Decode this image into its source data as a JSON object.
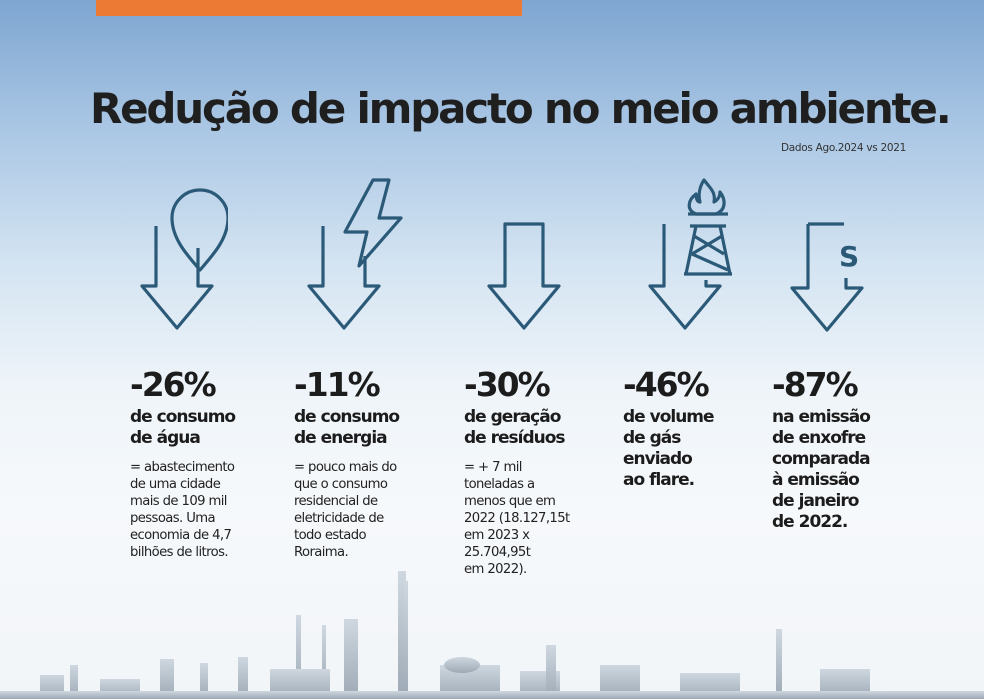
{
  "title": "Redução de impacto no meio ambiente.",
  "subtitle": "Dados Ago.2024 vs 2021",
  "colors": {
    "accent": "#ec7a35",
    "icon_stroke": "#2b5a78",
    "text": "#1c1c1c"
  },
  "stats": [
    {
      "icon": "water-drop-icon",
      "value": "-26%",
      "label": [
        "de consumo",
        "de água"
      ],
      "description": [
        "= abastecimento",
        "de uma cidade",
        "mais de 109 mil",
        "pessoas. Uma",
        "economia de 4,7",
        "bilhões de litros."
      ]
    },
    {
      "icon": "lightning-icon",
      "value": "-11%",
      "label": [
        "de consumo",
        "de energia"
      ],
      "description": [
        "= pouco mais do",
        "que o consumo",
        "residencial de",
        "eletricidade de",
        "todo estado",
        "Roraima."
      ]
    },
    {
      "icon": "arrow-down-icon",
      "value": "-30%",
      "label": [
        "de geração",
        "de resíduos"
      ],
      "description": [
        "= + 7 mil",
        "toneladas a",
        "menos que em",
        "2022 (18.127,15t",
        "em 2023 x",
        "25.704,95t",
        "em 2022)."
      ]
    },
    {
      "icon": "flare-tower-icon",
      "value": "-46%",
      "label": [
        "de volume",
        "de gás",
        "enviado",
        "ao flare."
      ],
      "description": []
    },
    {
      "icon": "sulfur-s-icon",
      "value": "-87%",
      "label": [
        "na emissão",
        "de enxofre",
        "comparada",
        "à emissão",
        "de janeiro",
        "de 2022."
      ],
      "description": []
    }
  ]
}
